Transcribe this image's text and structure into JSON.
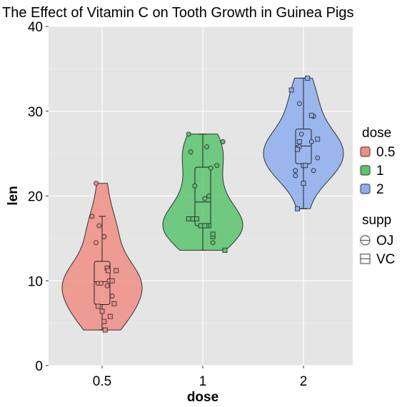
{
  "chart_data": {
    "type": "violin",
    "title": "The Effect of Vitamin C on Tooth Growth in Guinea Pigs",
    "xlabel": "dose",
    "ylabel": "len",
    "ylim": [
      0,
      40
    ],
    "yticks": [
      0,
      10,
      20,
      30,
      40
    ],
    "categories": [
      "0.5",
      "1",
      "2"
    ],
    "grid": true,
    "legend_position": "right",
    "legends": [
      {
        "title": "dose",
        "entries": [
          "0.5",
          "1",
          "2"
        ]
      },
      {
        "title": "supp",
        "entries": [
          "OJ",
          "VC"
        ]
      }
    ],
    "colors": {
      "0.5": "#F08E86",
      "1": "#5CC46E",
      "2": "#8EADEF"
    },
    "series": [
      {
        "dose": "0.5",
        "min": 4.2,
        "q1": 7.2,
        "median": 9.9,
        "q3": 12.3,
        "max": 21.5,
        "whisker_low": 4.2,
        "whisker_high": 17.6,
        "points": [
          {
            "x": 0.52,
            "y": 15.2,
            "supp": "OJ"
          },
          {
            "x": 0.44,
            "y": 21.5,
            "supp": "OJ"
          },
          {
            "x": 0.4,
            "y": 17.6,
            "supp": "OJ"
          },
          {
            "x": 0.46,
            "y": 9.7,
            "supp": "OJ"
          },
          {
            "x": 0.44,
            "y": 14.5,
            "supp": "OJ"
          },
          {
            "x": 0.57,
            "y": 10.0,
            "supp": "OJ"
          },
          {
            "x": 0.6,
            "y": 8.2,
            "supp": "OJ"
          },
          {
            "x": 0.55,
            "y": 9.4,
            "supp": "OJ"
          },
          {
            "x": 0.47,
            "y": 16.5,
            "supp": "OJ"
          },
          {
            "x": 0.49,
            "y": 9.7,
            "supp": "OJ"
          },
          {
            "x": 0.53,
            "y": 4.2,
            "supp": "VC"
          },
          {
            "x": 0.55,
            "y": 11.5,
            "supp": "VC"
          },
          {
            "x": 0.62,
            "y": 7.3,
            "supp": "VC"
          },
          {
            "x": 0.58,
            "y": 5.8,
            "supp": "VC"
          },
          {
            "x": 0.5,
            "y": 6.4,
            "supp": "VC"
          },
          {
            "x": 0.6,
            "y": 10.0,
            "supp": "VC"
          },
          {
            "x": 0.56,
            "y": 11.2,
            "supp": "VC"
          },
          {
            "x": 0.64,
            "y": 11.2,
            "supp": "VC"
          },
          {
            "x": 0.52,
            "y": 5.2,
            "supp": "VC"
          },
          {
            "x": 0.46,
            "y": 7.0,
            "supp": "VC"
          }
        ]
      },
      {
        "dose": "1",
        "min": 13.6,
        "q1": 16.5,
        "median": 19.3,
        "q3": 23.4,
        "max": 27.3,
        "whisker_low": 13.6,
        "whisker_high": 27.3,
        "points": [
          {
            "x": 1.02,
            "y": 19.7,
            "supp": "OJ"
          },
          {
            "x": 1.08,
            "y": 23.3,
            "supp": "OJ"
          },
          {
            "x": 1.14,
            "y": 23.6,
            "supp": "OJ"
          },
          {
            "x": 1.2,
            "y": 26.4,
            "supp": "OJ"
          },
          {
            "x": 1.06,
            "y": 20.0,
            "supp": "OJ"
          },
          {
            "x": 0.88,
            "y": 25.2,
            "supp": "OJ"
          },
          {
            "x": 1.04,
            "y": 25.8,
            "supp": "OJ"
          },
          {
            "x": 0.92,
            "y": 21.2,
            "supp": "OJ"
          },
          {
            "x": 0.86,
            "y": 27.3,
            "supp": "OJ"
          },
          {
            "x": 1.1,
            "y": 14.5,
            "supp": "OJ"
          },
          {
            "x": 0.98,
            "y": 16.5,
            "supp": "VC"
          },
          {
            "x": 1.06,
            "y": 16.5,
            "supp": "VC"
          },
          {
            "x": 1.1,
            "y": 15.2,
            "supp": "VC"
          },
          {
            "x": 0.9,
            "y": 17.3,
            "supp": "VC"
          },
          {
            "x": 1.1,
            "y": 15.5,
            "supp": "VC"
          },
          {
            "x": 1.04,
            "y": 16.5,
            "supp": "VC"
          },
          {
            "x": 1.02,
            "y": 16.5,
            "supp": "VC"
          },
          {
            "x": 0.94,
            "y": 17.3,
            "supp": "VC"
          },
          {
            "x": 1.22,
            "y": 13.6,
            "supp": "VC"
          },
          {
            "x": 0.86,
            "y": 17.3,
            "supp": "VC"
          }
        ]
      },
      {
        "dose": "2",
        "min": 18.5,
        "q1": 23.8,
        "median": 25.9,
        "q3": 27.9,
        "max": 33.9,
        "whisker_low": 18.5,
        "whisker_high": 33.9,
        "points": [
          {
            "x": 1.94,
            "y": 25.5,
            "supp": "OJ"
          },
          {
            "x": 2.08,
            "y": 26.4,
            "supp": "OJ"
          },
          {
            "x": 1.92,
            "y": 22.4,
            "supp": "OJ"
          },
          {
            "x": 2.14,
            "y": 24.5,
            "supp": "OJ"
          },
          {
            "x": 2.1,
            "y": 29.4,
            "supp": "OJ"
          },
          {
            "x": 1.92,
            "y": 23.0,
            "supp": "OJ"
          },
          {
            "x": 1.96,
            "y": 30.9,
            "supp": "OJ"
          },
          {
            "x": 1.96,
            "y": 25.8,
            "supp": "OJ"
          },
          {
            "x": 2.1,
            "y": 23.0,
            "supp": "OJ"
          },
          {
            "x": 1.98,
            "y": 27.3,
            "supp": "OJ"
          },
          {
            "x": 2.0,
            "y": 23.6,
            "supp": "VC"
          },
          {
            "x": 2.08,
            "y": 29.5,
            "supp": "VC"
          },
          {
            "x": 1.88,
            "y": 32.5,
            "supp": "VC"
          },
          {
            "x": 1.96,
            "y": 26.4,
            "supp": "VC"
          },
          {
            "x": 2.02,
            "y": 23.6,
            "supp": "VC"
          },
          {
            "x": 2.04,
            "y": 33.9,
            "supp": "VC"
          },
          {
            "x": 1.94,
            "y": 18.5,
            "supp": "VC"
          },
          {
            "x": 2.0,
            "y": 21.5,
            "supp": "VC"
          },
          {
            "x": 2.14,
            "y": 26.7,
            "supp": "VC"
          },
          {
            "x": 1.94,
            "y": 25.5,
            "supp": "VC"
          }
        ]
      }
    ]
  }
}
